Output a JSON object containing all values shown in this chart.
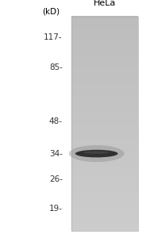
{
  "title": "HeLa",
  "kd_label": "(kD)",
  "markers": [
    117,
    85,
    48,
    34,
    26,
    19
  ],
  "marker_labels": [
    "117-",
    "85-",
    "48-",
    "34-",
    "26-",
    "19-"
  ],
  "band_kd": 34,
  "gel_color_top": "#c8c8c8",
  "gel_color_bottom": "#d0d0d0",
  "band_dark": "#222222",
  "band_mid": "#666666",
  "fig_bg": "#ffffff",
  "outside_bg": "#f5f5f5",
  "title_fontsize": 8,
  "marker_fontsize": 7.5,
  "kd_fontsize": 7.5
}
